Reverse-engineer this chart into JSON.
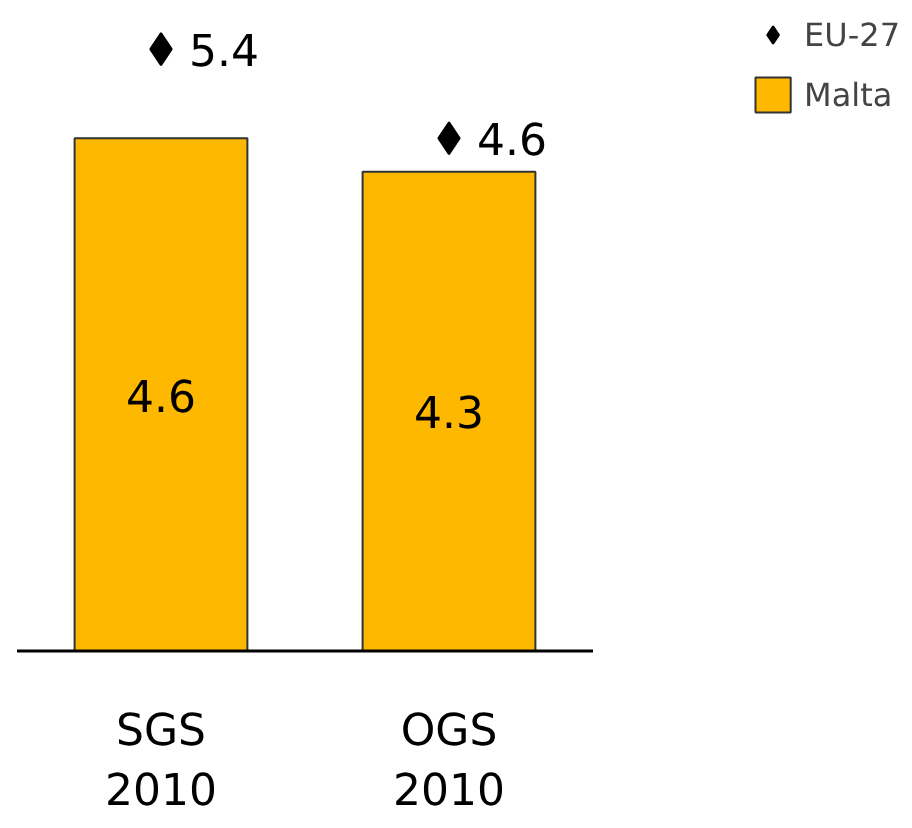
{
  "chart_data": {
    "type": "bar",
    "categories": [
      "SGS\n2010",
      "OGS\n2010"
    ],
    "series": [
      {
        "name": "Malta",
        "color": "#ffb800",
        "values": [
          4.6,
          4.3
        ]
      },
      {
        "name": "EU-27",
        "type": "scatter",
        "color": "#000000",
        "values": [
          5.4,
          4.6
        ],
        "marker": "diamond"
      }
    ],
    "data_labels": true,
    "legend": "top right",
    "grid": false
  }
}
